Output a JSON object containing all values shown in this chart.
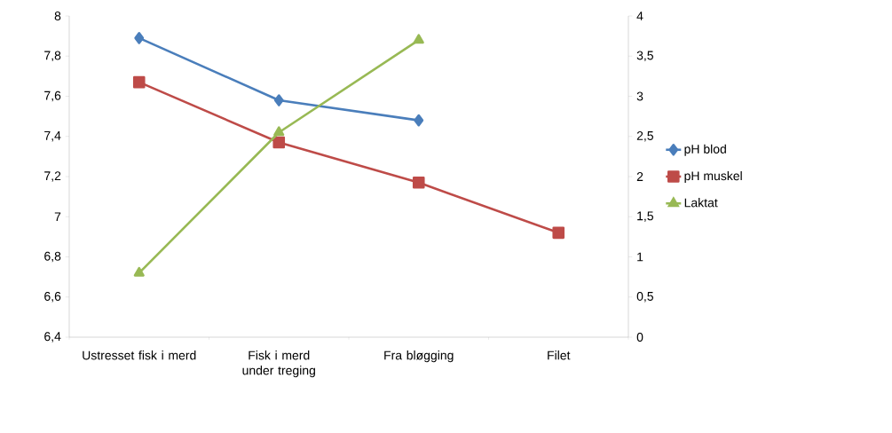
{
  "chart_data": {
    "type": "line",
    "categories": [
      "Ustresset fisk i merd",
      "Fisk i merd under treging",
      "Fra bløgging",
      "Filet"
    ],
    "series": [
      {
        "name": "pH blod",
        "color": "#4a7ebb",
        "marker": "diamond",
        "values": [
          7.89,
          7.58,
          7.48,
          null
        ]
      },
      {
        "name": "pH muskel",
        "color": "#be4b48",
        "marker": "square",
        "values": [
          7.67,
          7.37,
          7.17,
          6.92
        ]
      },
      {
        "name": "Laktat",
        "color": "#98b954",
        "marker": "triangle",
        "axis": "y2",
        "values": [
          0.8,
          2.55,
          3.7,
          null
        ]
      }
    ],
    "ylim": [
      6.4,
      8
    ],
    "yticks": [
      {
        "value": 6.4,
        "label": "6,4"
      },
      {
        "value": 6.6,
        "label": "6,6"
      },
      {
        "value": 6.8,
        "label": "6,8"
      },
      {
        "value": 7,
        "label": "7"
      },
      {
        "value": 7.2,
        "label": "7,2"
      },
      {
        "value": 7.4,
        "label": "7,4"
      },
      {
        "value": 7.6,
        "label": "7,6"
      },
      {
        "value": 7.8,
        "label": "7,8"
      },
      {
        "value": 8,
        "label": "8"
      }
    ],
    "y2lim": [
      0,
      4
    ],
    "y2ticks": [
      {
        "value": 0,
        "label": "0"
      },
      {
        "value": 0.5,
        "label": "0,5"
      },
      {
        "value": 1,
        "label": "1"
      },
      {
        "value": 1.5,
        "label": "1,5"
      },
      {
        "value": 2,
        "label": "2"
      },
      {
        "value": 2.5,
        "label": "2,5"
      },
      {
        "value": 3,
        "label": "3"
      },
      {
        "value": 3.5,
        "label": "3,5"
      },
      {
        "value": 4,
        "label": "4"
      }
    ],
    "grid": false,
    "legend": "right",
    "line_style": "solid"
  }
}
